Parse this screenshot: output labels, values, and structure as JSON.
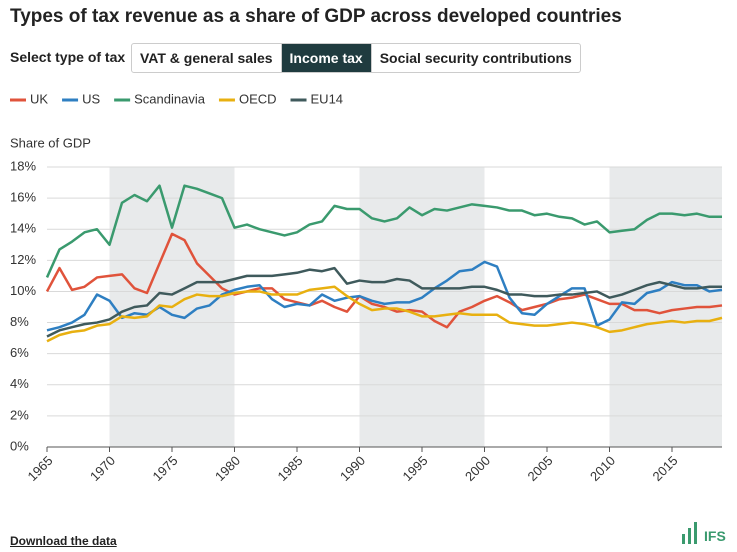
{
  "title": "Types of tax revenue as a share of GDP across developed countries",
  "controls": {
    "label": "Select type of tax",
    "options": [
      "VAT & general sales",
      "Income tax",
      "Social security contributions"
    ],
    "selected": 1
  },
  "footer": {
    "link": "Download the data",
    "logo": "IFS"
  },
  "chart_data": {
    "type": "line",
    "y_axis_label": "Share of GDP",
    "x": [
      1965,
      1966,
      1967,
      1968,
      1969,
      1970,
      1971,
      1972,
      1973,
      1974,
      1975,
      1976,
      1977,
      1978,
      1979,
      1980,
      1981,
      1982,
      1983,
      1984,
      1985,
      1986,
      1987,
      1988,
      1989,
      1990,
      1991,
      1992,
      1993,
      1994,
      1995,
      1996,
      1997,
      1998,
      1999,
      2000,
      2001,
      2002,
      2003,
      2004,
      2005,
      2006,
      2007,
      2008,
      2009,
      2010,
      2011,
      2012,
      2013,
      2014,
      2015,
      2016,
      2017,
      2018,
      2019
    ],
    "xlim": [
      1965,
      2019
    ],
    "xticks": [
      1965,
      1970,
      1975,
      1980,
      1985,
      1990,
      1995,
      2000,
      2005,
      2010,
      2015
    ],
    "ylim": [
      0,
      18
    ],
    "yticks": [
      {
        "value": 0,
        "label": "0%"
      },
      {
        "value": 2,
        "label": "2%"
      },
      {
        "value": 4,
        "label": "4%"
      },
      {
        "value": 6,
        "label": "6%"
      },
      {
        "value": 8,
        "label": "8%"
      },
      {
        "value": 10,
        "label": "10%"
      },
      {
        "value": 12,
        "label": "12%"
      },
      {
        "value": 14,
        "label": "14%"
      },
      {
        "value": 16,
        "label": "16%"
      },
      {
        "value": 18,
        "label": "18%"
      }
    ],
    "grid": true,
    "shaded_ranges": [
      [
        1970,
        1980
      ],
      [
        1990,
        2000
      ],
      [
        2010,
        2019
      ]
    ],
    "series": [
      {
        "name": "UK",
        "color": "#e0533b",
        "values": [
          10.0,
          11.5,
          10.1,
          10.3,
          10.9,
          11.0,
          11.1,
          10.2,
          9.9,
          11.8,
          13.7,
          13.3,
          11.8,
          11.0,
          10.2,
          9.8,
          10.0,
          10.2,
          10.2,
          9.5,
          9.3,
          9.1,
          9.4,
          9.0,
          8.7,
          9.7,
          9.2,
          9.0,
          8.7,
          8.8,
          8.7,
          8.1,
          7.7,
          8.7,
          9.0,
          9.4,
          9.7,
          9.3,
          8.8,
          9.0,
          9.2,
          9.5,
          9.6,
          9.8,
          9.5,
          9.2,
          9.2,
          8.8,
          8.8,
          8.6,
          8.8,
          8.9,
          9.0,
          9.0,
          9.1
        ]
      },
      {
        "name": "US",
        "color": "#2e7fc2",
        "values": [
          7.5,
          7.7,
          8.0,
          8.5,
          9.8,
          9.4,
          8.3,
          8.6,
          8.5,
          9.0,
          8.5,
          8.3,
          8.9,
          9.1,
          9.8,
          10.1,
          10.3,
          10.4,
          9.5,
          9.0,
          9.2,
          9.1,
          9.8,
          9.4,
          9.6,
          9.7,
          9.4,
          9.2,
          9.3,
          9.3,
          9.6,
          10.2,
          10.7,
          11.3,
          11.4,
          11.9,
          11.6,
          9.6,
          8.6,
          8.5,
          9.2,
          9.7,
          10.2,
          10.2,
          7.8,
          8.2,
          9.3,
          9.2,
          9.9,
          10.1,
          10.6,
          10.4,
          10.4,
          10.0,
          10.1
        ]
      },
      {
        "name": "Scandinavia",
        "color": "#3a9a6e",
        "values": [
          10.9,
          12.7,
          13.2,
          13.8,
          14.0,
          13.0,
          15.7,
          16.2,
          15.8,
          16.8,
          14.1,
          16.8,
          16.6,
          16.3,
          16.0,
          14.1,
          14.3,
          14.0,
          13.8,
          13.6,
          13.8,
          14.3,
          14.5,
          15.5,
          15.3,
          15.3,
          14.7,
          14.5,
          14.7,
          15.4,
          14.9,
          15.3,
          15.2,
          15.4,
          15.6,
          15.5,
          15.4,
          15.2,
          15.2,
          14.9,
          15.0,
          14.8,
          14.7,
          14.3,
          14.5,
          13.8,
          13.9,
          14.0,
          14.6,
          15.0,
          15.0,
          14.9,
          15.0,
          14.8,
          14.8
        ]
      },
      {
        "name": "OECD",
        "color": "#e8b010",
        "values": [
          6.8,
          7.2,
          7.4,
          7.5,
          7.8,
          7.9,
          8.4,
          8.3,
          8.4,
          9.1,
          9.0,
          9.5,
          9.8,
          9.7,
          9.7,
          9.9,
          10.0,
          10.0,
          9.8,
          9.8,
          9.8,
          10.1,
          10.2,
          10.3,
          9.7,
          9.2,
          8.8,
          8.9,
          8.9,
          8.7,
          8.4,
          8.4,
          8.5,
          8.6,
          8.5,
          8.5,
          8.5,
          8.0,
          7.9,
          7.8,
          7.8,
          7.9,
          8.0,
          7.9,
          7.7,
          7.4,
          7.5,
          7.7,
          7.9,
          8.0,
          8.1,
          8.0,
          8.1,
          8.1,
          8.3
        ]
      },
      {
        "name": "EU14",
        "color": "#3f5a5c",
        "values": [
          7.1,
          7.5,
          7.7,
          7.9,
          8.0,
          8.2,
          8.7,
          9.0,
          9.1,
          9.9,
          9.8,
          10.2,
          10.6,
          10.6,
          10.6,
          10.8,
          11.0,
          11.0,
          11.0,
          11.1,
          11.2,
          11.4,
          11.3,
          11.5,
          10.5,
          10.7,
          10.6,
          10.6,
          10.8,
          10.7,
          10.2,
          10.2,
          10.2,
          10.2,
          10.3,
          10.3,
          10.1,
          9.8,
          9.8,
          9.7,
          9.7,
          9.8,
          9.8,
          9.9,
          10.0,
          9.6,
          9.8,
          10.1,
          10.4,
          10.6,
          10.4,
          10.2,
          10.2,
          10.3,
          10.3
        ]
      }
    ]
  }
}
